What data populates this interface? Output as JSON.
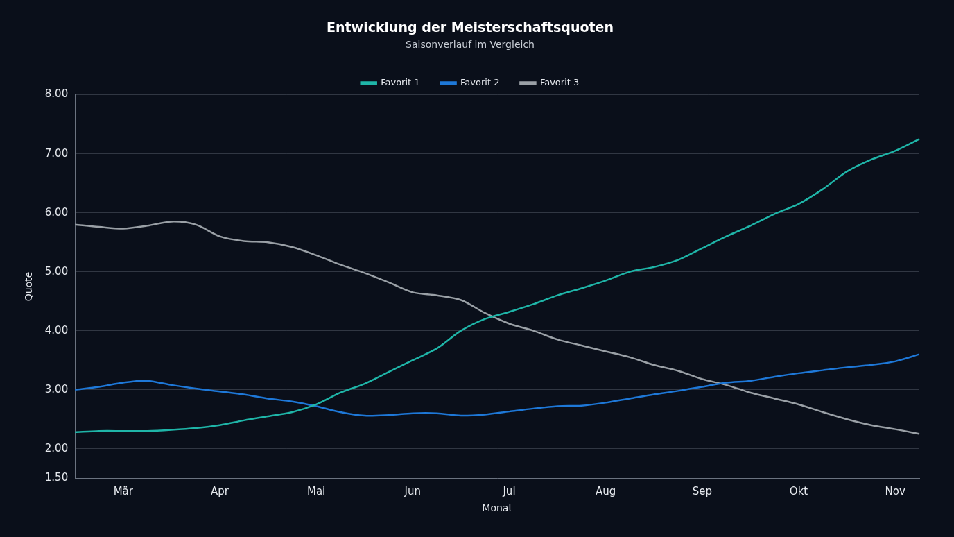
{
  "chart_data": {
    "type": "line",
    "title": "Entwicklung der Meisterschaftsquoten",
    "subtitle": "Saisonverlauf im Vergleich",
    "y_label": "Quote",
    "x_label": "Monat",
    "categories": [
      null,
      null,
      "Mär",
      null,
      null,
      null,
      "Apr",
      null,
      null,
      null,
      "Mai",
      null,
      null,
      null,
      "Jun",
      null,
      null,
      null,
      "Jul",
      null,
      null,
      null,
      "Aug",
      null,
      null,
      null,
      "Sep",
      null,
      null,
      null,
      "Okt",
      null,
      null,
      null,
      "Nov",
      null
    ],
    "series": [
      {
        "name": "Favorit 1",
        "color": "#1fb5a8",
        "values": [
          2.28,
          2.3,
          2.3,
          2.3,
          2.32,
          2.35,
          2.4,
          2.48,
          2.55,
          2.62,
          2.75,
          2.95,
          3.1,
          3.3,
          3.5,
          3.7,
          4.0,
          4.2,
          4.32,
          4.45,
          4.6,
          4.72,
          4.85,
          5.0,
          5.08,
          5.2,
          5.4,
          5.6,
          5.78,
          5.98,
          6.15,
          6.4,
          6.7,
          6.9,
          7.05,
          7.25
        ]
      },
      {
        "name": "Favorit 2",
        "color": "#1e78d8",
        "values": [
          3.0,
          3.05,
          3.12,
          3.15,
          3.08,
          3.02,
          2.97,
          2.92,
          2.85,
          2.8,
          2.72,
          2.62,
          2.56,
          2.57,
          2.6,
          2.6,
          2.56,
          2.58,
          2.63,
          2.68,
          2.72,
          2.73,
          2.78,
          2.85,
          2.92,
          2.98,
          3.05,
          3.12,
          3.15,
          3.22,
          3.28,
          3.33,
          3.38,
          3.42,
          3.48,
          3.6
        ]
      },
      {
        "name": "Favorit 3",
        "color": "#9aa0a6",
        "values": [
          5.8,
          5.76,
          5.73,
          5.78,
          5.85,
          5.8,
          5.6,
          5.52,
          5.5,
          5.42,
          5.28,
          5.12,
          4.98,
          4.82,
          4.65,
          4.6,
          4.52,
          4.3,
          4.12,
          4.0,
          3.85,
          3.75,
          3.65,
          3.55,
          3.42,
          3.32,
          3.18,
          3.08,
          2.95,
          2.85,
          2.75,
          2.62,
          2.5,
          2.4,
          2.33,
          2.25
        ]
      }
    ],
    "ylim": [
      1.5,
      8
    ],
    "yticks": [
      {
        "value": 1.5,
        "label": "1.50"
      },
      {
        "value": 2,
        "label": "2.00"
      },
      {
        "value": 3,
        "label": "3.00"
      },
      {
        "value": 4,
        "label": "4.00"
      },
      {
        "value": 5,
        "label": "5.00"
      },
      {
        "value": 6,
        "label": "6.00"
      },
      {
        "value": 7,
        "label": "7.00"
      },
      {
        "value": 8,
        "label": "8.00"
      }
    ],
    "grid": true,
    "legend": "top",
    "marker": "none",
    "line_style": "solid"
  }
}
